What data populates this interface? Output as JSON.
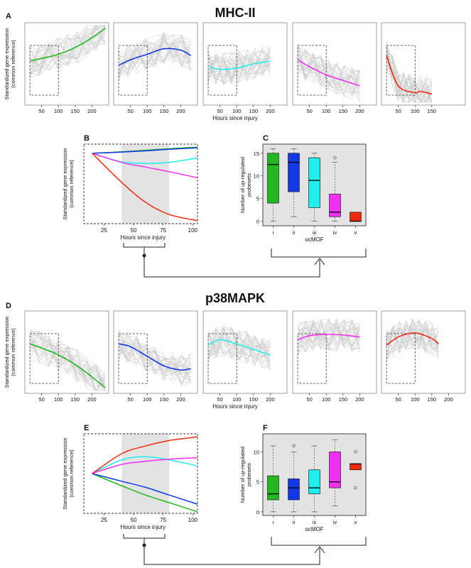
{
  "figure": {
    "title_top": "MHC-II",
    "title_bottom": "p38MAPK",
    "labels": {
      "a": "A",
      "b": "B",
      "c": "C",
      "d": "D",
      "e": "E",
      "f": "F"
    },
    "colors": {
      "i": "#22b81e",
      "ii": "#1239e6",
      "iii": "#22eeee",
      "iv": "#f030f0",
      "v": "#ee2a0a",
      "band": "#e3e3e3",
      "bg_box": "#e3e3e3",
      "trace": "#c8c8c8"
    }
  },
  "chart_data": [
    {
      "id": "A",
      "type": "line",
      "group": "MHC-II",
      "ylabel": "Standardized gene expression\n(common reference)",
      "xlabel": "Hours since injury",
      "xticks": [
        50,
        100,
        150,
        200
      ],
      "xlim": [
        0,
        250
      ],
      "ylim": [
        -3,
        3
      ],
      "inset_box_x": [
        15,
        100
      ],
      "panels": [
        {
          "series": "i",
          "x": [
            15,
            50,
            100,
            150,
            200,
            240
          ],
          "y": [
            0.2,
            0.4,
            0.7,
            1.2,
            1.9,
            2.6
          ]
        },
        {
          "series": "ii",
          "x": [
            15,
            50,
            100,
            150,
            200,
            230
          ],
          "y": [
            -0.1,
            0.3,
            0.7,
            1.1,
            1.0,
            0.6
          ]
        },
        {
          "series": "iii",
          "x": [
            15,
            50,
            100,
            150,
            200
          ],
          "y": [
            -0.2,
            -0.4,
            -0.3,
            0.0,
            0.2
          ]
        },
        {
          "series": "iv",
          "x": [
            15,
            50,
            100,
            150,
            200
          ],
          "y": [
            0.3,
            -0.2,
            -0.8,
            -1.2,
            -1.6
          ]
        },
        {
          "series": "v",
          "x": [
            15,
            50,
            100,
            115,
            150
          ],
          "y": [
            0.6,
            -1.6,
            -2.1,
            -2.0,
            -2.2
          ]
        }
      ]
    },
    {
      "id": "B",
      "type": "line",
      "group": "MHC-II",
      "ylabel": "Standardized gene expression\n(common reference)",
      "xlabel": "Hours since injury",
      "xticks": [
        25,
        50,
        75,
        100
      ],
      "xlim": [
        8,
        104
      ],
      "ylim": [
        -2.3,
        0.3
      ],
      "shade": [
        40,
        80
      ],
      "series": [
        {
          "name": "i",
          "x": [
            15,
            40,
            60,
            80,
            104
          ],
          "y": [
            0.0,
            0.05,
            0.1,
            0.15,
            0.2
          ]
        },
        {
          "name": "ii",
          "x": [
            15,
            40,
            60,
            80,
            104
          ],
          "y": [
            0.0,
            0.04,
            0.08,
            0.13,
            0.18
          ]
        },
        {
          "name": "iii",
          "x": [
            15,
            40,
            60,
            80,
            104
          ],
          "y": [
            0.0,
            -0.28,
            -0.33,
            -0.3,
            -0.15
          ]
        },
        {
          "name": "iv",
          "x": [
            15,
            40,
            60,
            80,
            104
          ],
          "y": [
            0.0,
            -0.3,
            -0.45,
            -0.6,
            -0.8
          ]
        },
        {
          "name": "v",
          "x": [
            15,
            40,
            60,
            80,
            104
          ],
          "y": [
            0.0,
            -0.95,
            -1.6,
            -2.0,
            -2.2
          ]
        }
      ]
    },
    {
      "id": "C",
      "type": "box",
      "group": "MHC-II",
      "ylabel": "Number of up-regulated\nprobesets",
      "xlabel": "ocMOF",
      "categories": [
        "i",
        "ii",
        "iii",
        "iv",
        "v"
      ],
      "yticks": [
        0,
        5,
        10,
        15
      ],
      "ylim": [
        -1,
        17
      ],
      "boxes": [
        {
          "min": 0,
          "q1": 4,
          "median": 12.5,
          "q3": 15,
          "max": 16,
          "outliers": []
        },
        {
          "min": 1,
          "q1": 6.5,
          "median": 13,
          "q3": 15,
          "max": 16,
          "outliers": []
        },
        {
          "min": 0,
          "q1": 3,
          "median": 9,
          "q3": 14,
          "max": 15,
          "outliers": []
        },
        {
          "min": 0,
          "q1": 1,
          "median": 2,
          "q3": 6,
          "max": 13,
          "outliers": [
            14
          ]
        },
        {
          "min": 0,
          "q1": 0,
          "median": 0,
          "q3": 2,
          "max": 2,
          "outliers": []
        }
      ]
    },
    {
      "id": "D",
      "type": "line",
      "group": "p38MAPK",
      "ylabel": "Standardized gene expression\n(common reference)",
      "xlabel": "Hours since injury",
      "xticks": [
        50,
        100,
        150,
        200
      ],
      "xlim": [
        0,
        250
      ],
      "ylim": [
        -3,
        3
      ],
      "inset_box_x": [
        15,
        100
      ],
      "panels": [
        {
          "series": "i",
          "x": [
            15,
            50,
            100,
            150,
            200,
            240
          ],
          "y": [
            0.6,
            0.3,
            -0.2,
            -0.9,
            -1.8,
            -2.6
          ]
        },
        {
          "series": "ii",
          "x": [
            15,
            50,
            100,
            150,
            200,
            230
          ],
          "y": [
            0.6,
            0.4,
            -0.3,
            -1.0,
            -1.3,
            -1.2
          ]
        },
        {
          "series": "iii",
          "x": [
            15,
            50,
            100,
            150,
            200
          ],
          "y": [
            0.5,
            0.9,
            0.6,
            0.2,
            -0.2
          ]
        },
        {
          "series": "iv",
          "x": [
            15,
            50,
            100,
            150,
            200
          ],
          "y": [
            0.9,
            1.2,
            1.3,
            1.25,
            1.1
          ]
        },
        {
          "series": "v",
          "x": [
            15,
            50,
            100,
            150,
            170
          ],
          "y": [
            0.5,
            1.1,
            1.4,
            1.0,
            0.6
          ]
        }
      ]
    },
    {
      "id": "E",
      "type": "line",
      "group": "p38MAPK",
      "ylabel": "Standardized gene expression\n(common reference)",
      "xlabel": "Hours since injury",
      "xticks": [
        25,
        50,
        75,
        100
      ],
      "xlim": [
        8,
        104
      ],
      "ylim": [
        -1.3,
        1.3
      ],
      "shade": [
        40,
        80
      ],
      "series": [
        {
          "name": "i",
          "x": [
            15,
            40,
            60,
            80,
            104
          ],
          "y": [
            0.0,
            -0.4,
            -0.7,
            -0.95,
            -1.25
          ]
        },
        {
          "name": "ii",
          "x": [
            15,
            40,
            60,
            80,
            104
          ],
          "y": [
            0.0,
            -0.25,
            -0.45,
            -0.7,
            -1.0
          ]
        },
        {
          "name": "iii",
          "x": [
            15,
            40,
            60,
            80,
            104
          ],
          "y": [
            0.0,
            0.45,
            0.55,
            0.45,
            0.25
          ]
        },
        {
          "name": "iv",
          "x": [
            15,
            40,
            60,
            80,
            104
          ],
          "y": [
            0.0,
            0.3,
            0.4,
            0.47,
            0.52
          ]
        },
        {
          "name": "v",
          "x": [
            15,
            40,
            60,
            80,
            104
          ],
          "y": [
            0.0,
            0.65,
            0.9,
            1.08,
            1.2
          ]
        }
      ]
    },
    {
      "id": "F",
      "type": "box",
      "group": "p38MAPK",
      "ylabel": "Number of up-regulated\nprobesets",
      "xlabel": "ocMOF",
      "categories": [
        "i",
        "ii",
        "iii",
        "iv",
        "v"
      ],
      "yticks": [
        0,
        5,
        10
      ],
      "ylim": [
        -0.6,
        13
      ],
      "boxes": [
        {
          "min": 0,
          "q1": 2,
          "median": 3,
          "q3": 6,
          "max": 11,
          "outliers": []
        },
        {
          "min": 0,
          "q1": 2,
          "median": 4,
          "q3": 5.5,
          "max": 10,
          "outliers": [
            11
          ]
        },
        {
          "min": 0,
          "q1": 3,
          "median": 4,
          "q3": 7,
          "max": 11,
          "outliers": []
        },
        {
          "min": 1,
          "q1": 4,
          "median": 5,
          "q3": 10,
          "max": 12,
          "outliers": []
        },
        {
          "min": 7,
          "q1": 7,
          "median": 8,
          "q3": 8,
          "max": 8,
          "outliers": [
            10,
            4
          ]
        }
      ]
    }
  ]
}
